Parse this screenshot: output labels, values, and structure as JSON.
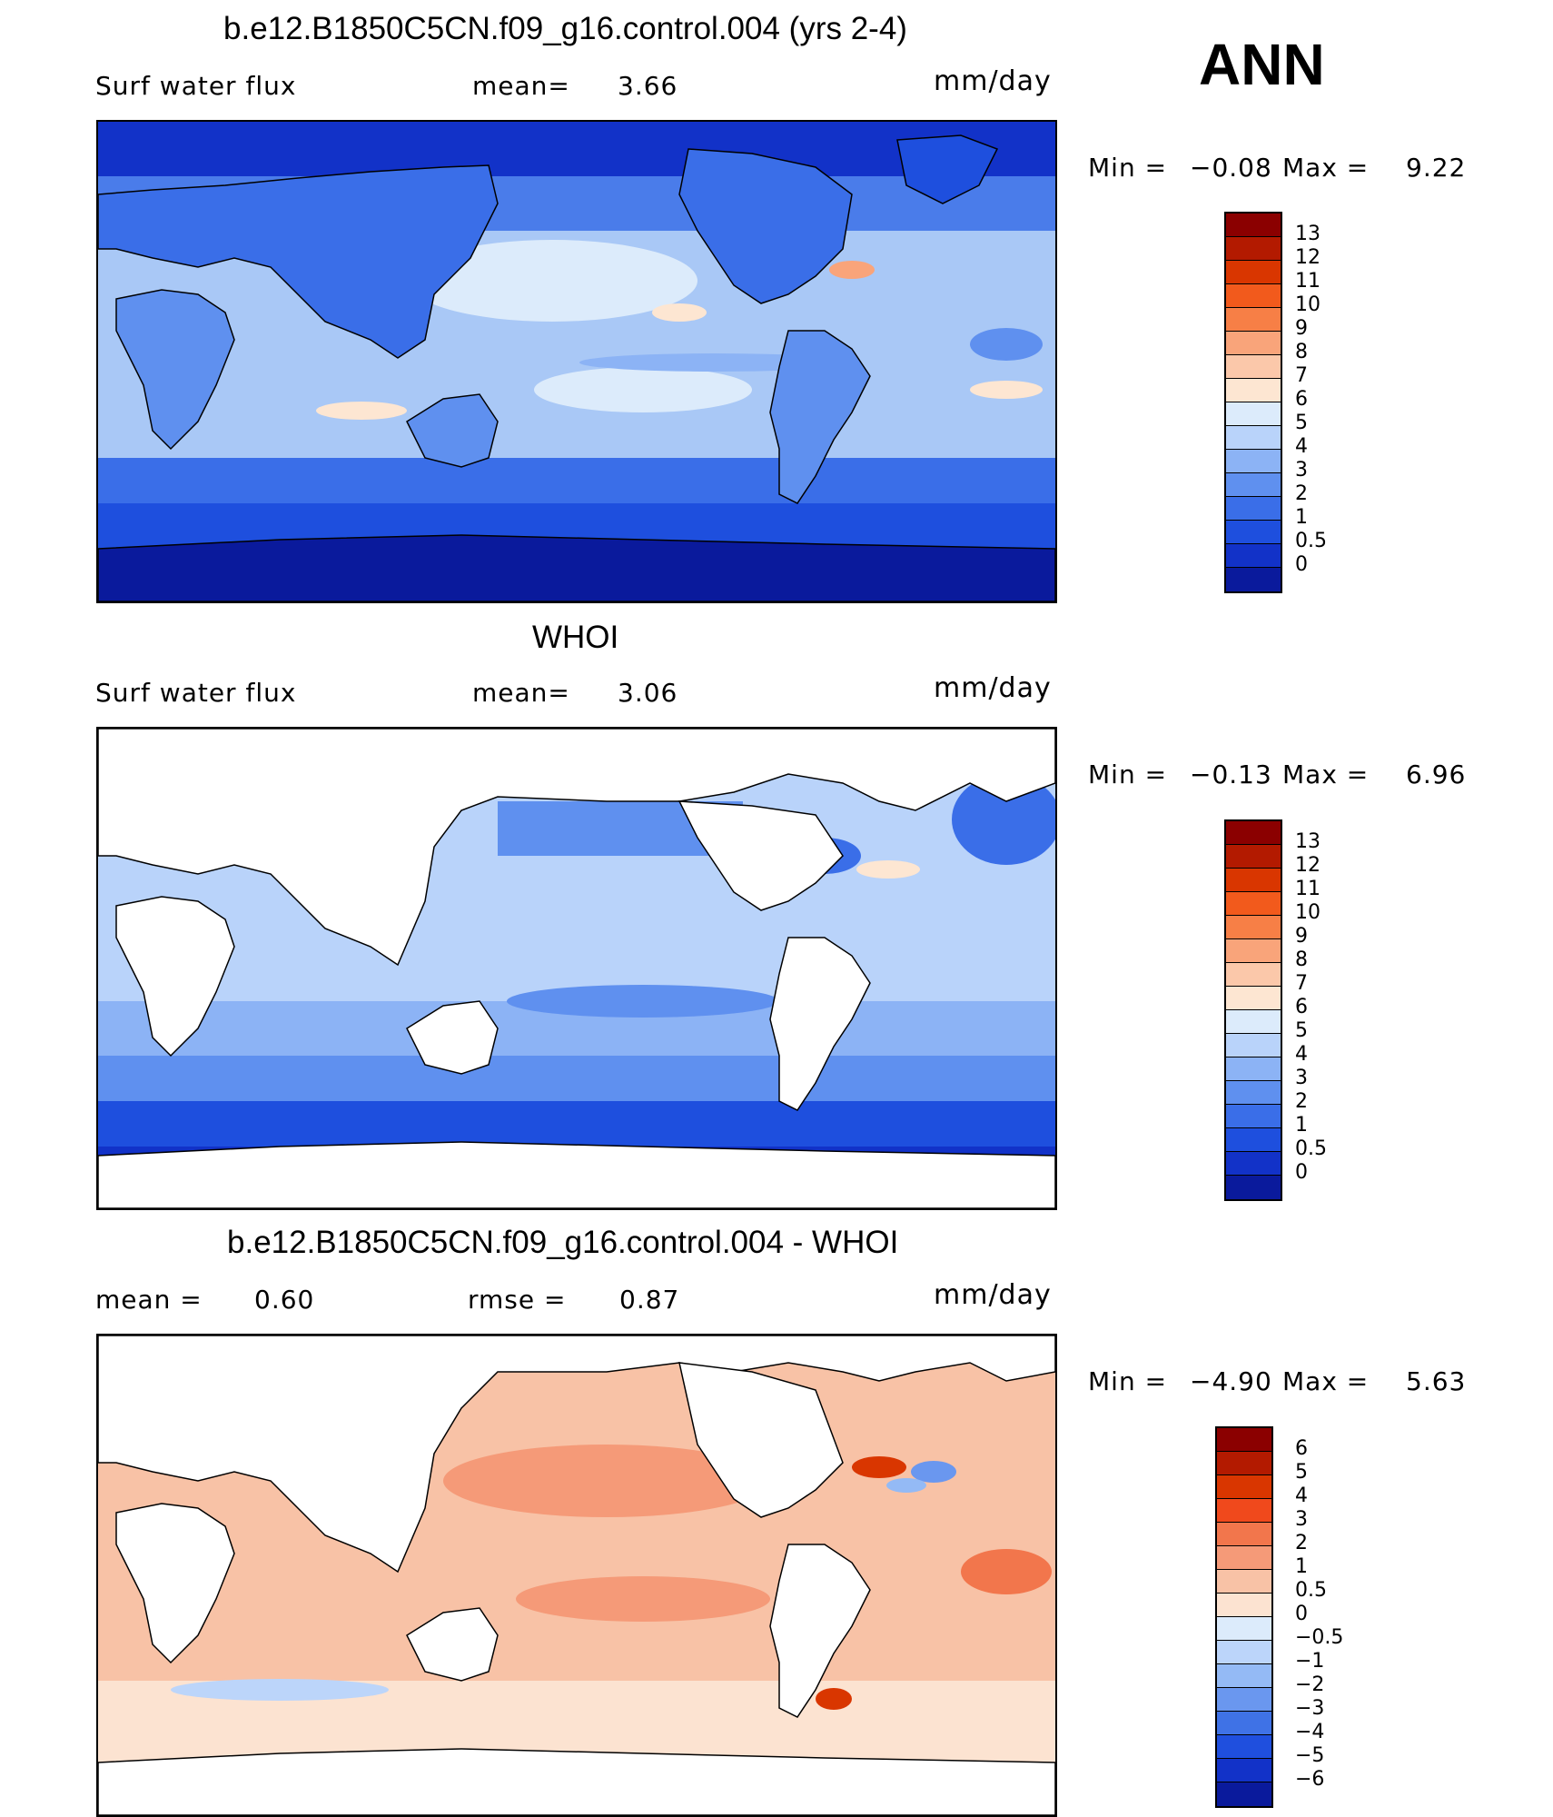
{
  "season": "ANN",
  "panels": [
    {
      "title": "b.e12.B1850C5CN.f09_g16.control.004 (yrs 2-4)",
      "left_label": "Surf water flux",
      "mid_label": "mean=",
      "mid_value": "3.66",
      "units": "mm/day",
      "min_label": "Min =",
      "min_value": "−0.08",
      "max_label": "Max =",
      "max_value": "9.22"
    },
    {
      "title": "WHOI",
      "left_label": "Surf water flux",
      "mid_label": "mean=",
      "mid_value": "3.06",
      "units": "mm/day",
      "min_label": "Min =",
      "min_value": "−0.13",
      "max_label": "Max =",
      "max_value": "6.96"
    },
    {
      "title": "b.e12.B1850C5CN.f09_g16.control.004 - WHOI",
      "left_label": "mean =",
      "left_value": "0.60",
      "mid_label": "rmse =",
      "mid_value": "0.87",
      "units": "mm/day",
      "min_label": "Min =",
      "min_value": "−4.90",
      "max_label": "Max =",
      "max_value": "5.63"
    }
  ],
  "colorbars": {
    "flux": {
      "levels": [
        "13",
        "12",
        "11",
        "10",
        "9",
        "8",
        "7",
        "6",
        "5",
        "4",
        "3",
        "2",
        "1",
        "0.5",
        "0"
      ],
      "colors": [
        "#8b0000",
        "#b31a00",
        "#d93600",
        "#f25a1c",
        "#f77f46",
        "#f9a47a",
        "#fbc8aa",
        "#fde6d2",
        "#dcebfb",
        "#b9d3fa",
        "#8cb3f5",
        "#5f90ef",
        "#3a6ee8",
        "#1e4fde",
        "#1232c8",
        "#0a1a9c"
      ]
    },
    "diff": {
      "levels": [
        "6",
        "5",
        "4",
        "3",
        "2",
        "1",
        "0.5",
        "0",
        "−0.5",
        "−1",
        "−2",
        "−3",
        "−4",
        "−5",
        "−6"
      ],
      "colors": [
        "#8b0000",
        "#b31a00",
        "#d93600",
        "#f0491c",
        "#f2764c",
        "#f59a78",
        "#f8c2a6",
        "#fce3d1",
        "#dcebfb",
        "#bcd5fa",
        "#94baf5",
        "#6a97ef",
        "#3f72e6",
        "#1f4fde",
        "#1232c8",
        "#0a1a9c"
      ]
    }
  },
  "colors": {
    "ocean_base_model": "#a9c8f6",
    "ocean_base_obs": "#8cb3f5",
    "ocean_base_diff": "#f8c2a6",
    "land_model": "#3a6ee8",
    "land_obs": "#ffffff",
    "coastline": "#000000"
  }
}
